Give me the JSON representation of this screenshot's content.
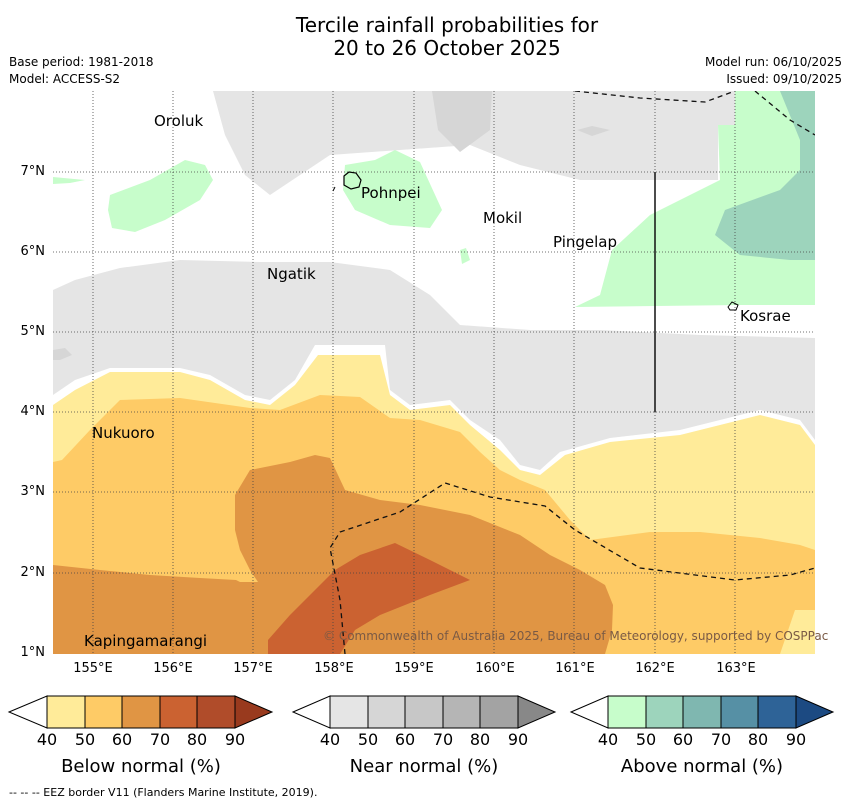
{
  "title_line1": "Tercile rainfall probabilities for",
  "title_line2": "20 to 26 October 2025",
  "base_period": "Base period: 1981-2018",
  "model": "Model: ACCESS-S2",
  "model_run": "Model run: 06/10/2025",
  "issued": "Issued: 09/10/2025",
  "y_ticks": [
    "7°N",
    "6°N",
    "5°N",
    "4°N",
    "3°N",
    "2°N",
    "1°N"
  ],
  "x_ticks": [
    "155°E",
    "156°E",
    "157°E",
    "158°E",
    "159°E",
    "160°E",
    "161°E",
    "162°E",
    "163°E"
  ],
  "places": {
    "oroluk": "Oroluk",
    "pohnpei": "Pohnpei",
    "mokil": "Mokil",
    "pingelap": "Pingelap",
    "ngatik": "Ngatik",
    "kosrae": "Kosrae",
    "nukuoro": "Nukuoro",
    "kapingamarangi": "Kapingamarangi"
  },
  "credit": "© Commonwealth of Australia 2025, Bureau of Meteorology, supported by COSPPac",
  "colorbars": {
    "ticks": [
      "40",
      "50",
      "60",
      "70",
      "80",
      "90"
    ],
    "below": {
      "label": "Below normal (%)",
      "colors": [
        "#ffeb99",
        "#fecb66",
        "#e09544",
        "#cb6231",
        "#b04c2a",
        "#993a1e"
      ]
    },
    "near": {
      "label": "Near normal (%)",
      "colors": [
        "#e5e5e5",
        "#d6d6d6",
        "#c7c7c7",
        "#b5b5b5",
        "#a3a3a3",
        "#888888"
      ]
    },
    "above": {
      "label": "Above normal (%)",
      "colors": [
        "#c7fdcb",
        "#9dd4bc",
        "#7fb7b0",
        "#5690a5",
        "#2e6397",
        "#1c4a82"
      ]
    }
  },
  "footnote": "-- -- -- EEZ border V11 (Flanders Marine Institute, 2019)."
}
